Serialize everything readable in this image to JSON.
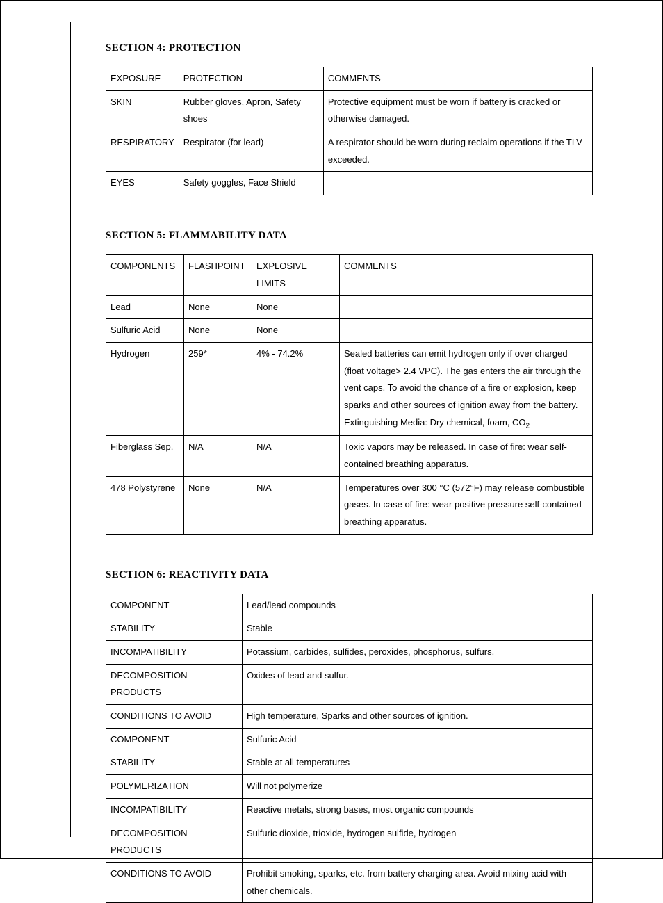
{
  "section4": {
    "title": "SECTION 4: PROTECTION",
    "headers": [
      "EXPOSURE",
      "PROTECTION",
      "COMMENTS"
    ],
    "rows": [
      [
        "SKIN",
        "Rubber gloves, Apron, Safety shoes",
        "Protective equipment must be worn if battery is cracked or otherwise damaged."
      ],
      [
        "RESPIRATORY",
        "Respirator (for lead)",
        "A respirator should be worn during reclaim operations if the TLV exceeded."
      ],
      [
        "EYES",
        "Safety goggles, Face Shield",
        ""
      ]
    ]
  },
  "section5": {
    "title": "SECTION 5: FLAMMABILITY DATA",
    "headers": [
      "COMPONENTS",
      "FLASHPOINT",
      "EXPLOSIVE LIMITS",
      "COMMENTS"
    ],
    "rows": [
      [
        "Lead",
        "None",
        "None",
        ""
      ],
      [
        "Sulfuric Acid",
        "None",
        "None",
        ""
      ],
      [
        "Hydrogen",
        "259*",
        "4% - 74.2%",
        "Sealed batteries can emit hydrogen only if over charged (float voltage> 2.4 VPC). The gas enters the air through the vent caps. To avoid the chance of a fire or explosion, keep sparks and other sources of ignition away from the battery. Extinguishing Media: Dry chemical, foam, CO"
      ],
      [
        "Fiberglass Sep.",
        "N/A",
        "N/A",
        "Toxic vapors may be released. In case of fire: wear self-contained breathing apparatus."
      ],
      [
        "478 Polystyrene",
        "None",
        "N/A",
        "Temperatures over 300 °C (572°F) may release combustible gases. In case of fire: wear positive pressure self-contained breathing apparatus."
      ]
    ],
    "co2_sub": "2"
  },
  "section6": {
    "title": "SECTION 6: REACTIVITY DATA",
    "rows": [
      [
        "COMPONENT",
        "Lead/lead compounds"
      ],
      [
        "STABILITY",
        "Stable"
      ],
      [
        "INCOMPATIBILITY",
        "Potassium, carbides, sulfides, peroxides, phosphorus, sulfurs."
      ],
      [
        "DECOMPOSITION PRODUCTS",
        "Oxides of lead and sulfur."
      ],
      [
        "CONDITIONS TO AVOID",
        "High temperature, Sparks and other sources of ignition."
      ],
      [
        "COMPONENT",
        "Sulfuric Acid"
      ],
      [
        "STABILITY",
        "Stable at all temperatures"
      ],
      [
        "POLYMERIZATION",
        "Will not polymerize"
      ],
      [
        "INCOMPATIBILITY",
        "Reactive metals, strong bases, most organic compounds"
      ],
      [
        "DECOMPOSITION PRODUCTS",
        "Sulfuric dioxide, trioxide, hydrogen sulfide, hydrogen"
      ],
      [
        "CONDITIONS TO AVOID",
        "Prohibit smoking, sparks, etc. from battery charging area. Avoid mixing acid with other chemicals."
      ]
    ]
  }
}
